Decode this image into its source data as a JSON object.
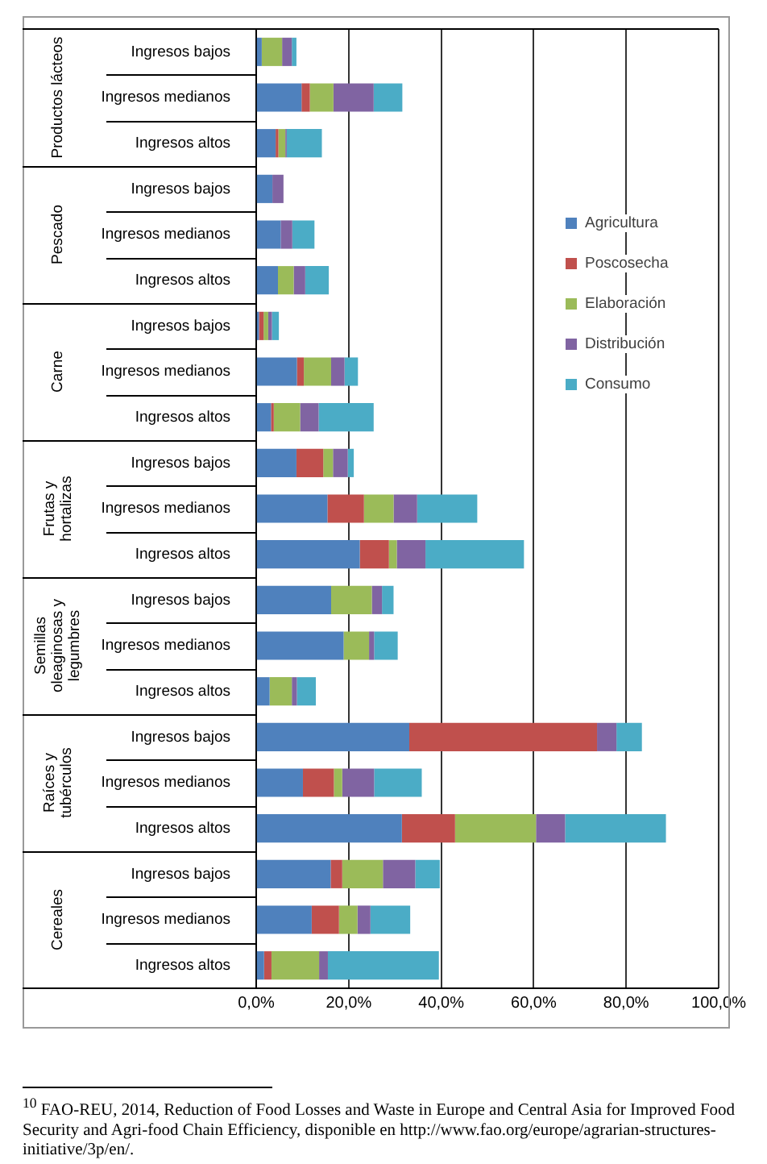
{
  "chart_data": {
    "type": "bar",
    "orientation": "horizontal",
    "stacked": true,
    "categories": [
      "Ingresos bajos",
      "Ingresos medianos",
      "Ingresos altos",
      "Ingresos bajos",
      "Ingresos medianos",
      "Ingresos altos",
      "Ingresos bajos",
      "Ingresos medianos",
      "Ingresos altos",
      "Ingresos bajos",
      "Ingresos medianos",
      "Ingresos altos",
      "Ingresos bajos",
      "Ingresos medianos",
      "Ingresos altos",
      "Ingresos bajos",
      "Ingresos medianos",
      "Ingresos altos",
      "Ingresos bajos",
      "Ingresos medianos",
      "Ingresos altos"
    ],
    "series": [
      {
        "name": "Agricultura",
        "color": "#4f81bd",
        "values": [
          1.2,
          9.8,
          4.2,
          3.5,
          5.3,
          4.7,
          0.6,
          8.8,
          3.2,
          8.7,
          15.4,
          22.4,
          16.2,
          18.9,
          2.9,
          33.1,
          10.1,
          31.5,
          16.1,
          12.0,
          1.7
        ]
      },
      {
        "name": "Poscosecha",
        "color": "#c0504d",
        "values": [
          0,
          1.8,
          0.6,
          0,
          0,
          0,
          1.0,
          1.5,
          0.6,
          5.8,
          7.9,
          6.3,
          0,
          0,
          0,
          40.6,
          6.7,
          11.5,
          2.5,
          5.9,
          1.6
        ]
      },
      {
        "name": "Elaboración",
        "color": "#9bbb59",
        "values": [
          4.4,
          5.1,
          1.5,
          0,
          0,
          3.4,
          1.0,
          5.9,
          5.7,
          2.1,
          6.4,
          1.7,
          8.8,
          5.5,
          4.8,
          0,
          1.8,
          17.5,
          8.8,
          4.0,
          10.3
        ]
      },
      {
        "name": "Distribución",
        "color": "#8064a2",
        "values": [
          2.1,
          8.7,
          0.3,
          2.4,
          2.5,
          2.5,
          0.8,
          2.9,
          4.0,
          3.2,
          5.1,
          6.2,
          2.2,
          1.1,
          1.1,
          4.2,
          6.9,
          6.3,
          7.0,
          2.8,
          1.9
        ]
      },
      {
        "name": "Consumo",
        "color": "#4bacc6",
        "values": [
          1.0,
          6.2,
          7.6,
          0,
          4.8,
          5.1,
          1.5,
          2.9,
          11.9,
          1.3,
          13.0,
          21.3,
          2.5,
          5.1,
          4.1,
          5.5,
          10.3,
          21.8,
          5.3,
          8.6,
          24.0
        ]
      }
    ],
    "xlim": [
      0,
      100
    ],
    "xticks": [
      {
        "value": 0,
        "label": "0,0%"
      },
      {
        "value": 20,
        "label": "20,0%"
      },
      {
        "value": 40,
        "label": "40,0%"
      },
      {
        "value": 60,
        "label": "60,0%"
      },
      {
        "value": 80,
        "label": "80,0%"
      },
      {
        "value": 100,
        "label": "100,0%"
      }
    ],
    "grid": "x",
    "legend": "right",
    "annotations": [
      "Productos lácteos",
      "Pescado",
      "Carne",
      "Frutas y hortalizas",
      "Semillas oleaginosas y legumbres",
      "Raíces y tubérculos",
      "Cereales",
      "$^{10}$ FAO-REU, 2014, Reduction of Food Losses and Waste in Europe and Central Asia for Improved Food Security and Agri-food Chain Efficiency, disponible en http://www.fao.org/europe/agrarian-structures-initiative/3p/en/."
    ]
  }
}
